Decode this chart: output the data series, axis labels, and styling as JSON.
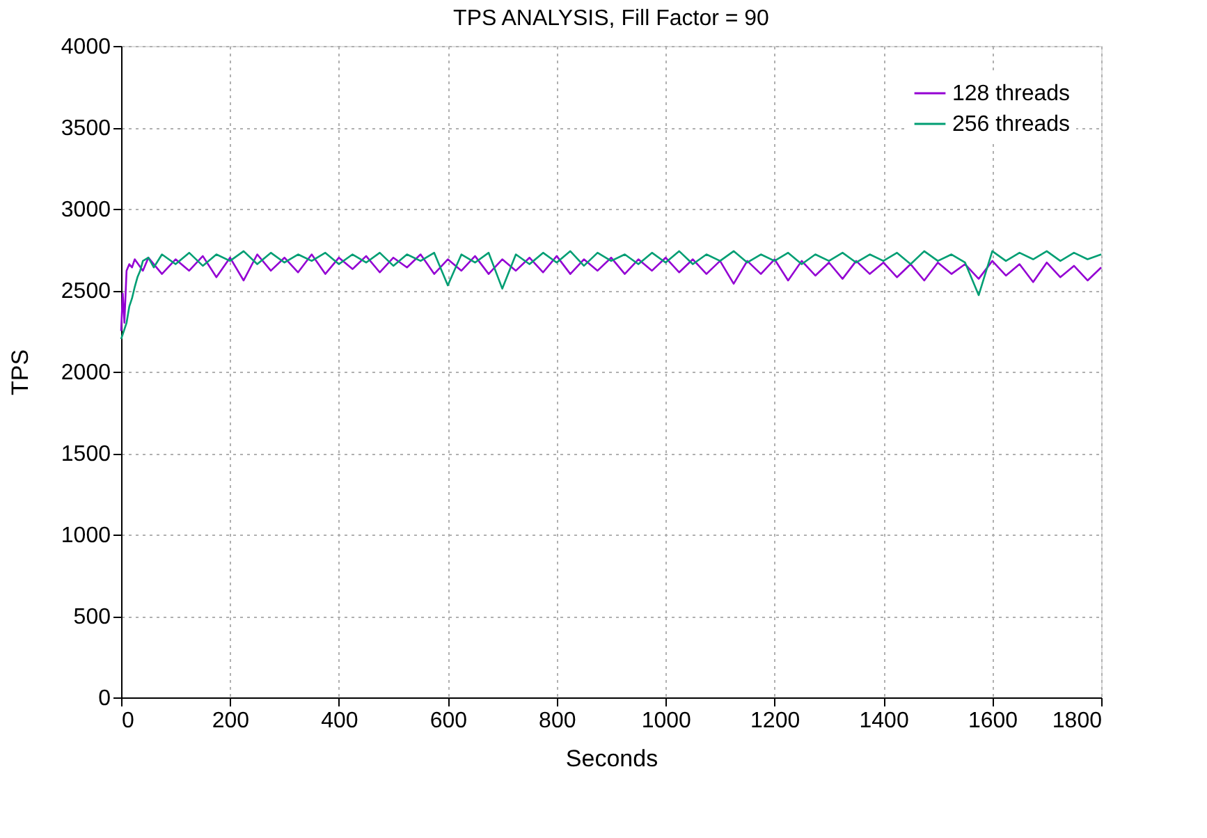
{
  "chart_data": {
    "type": "line",
    "title": "TPS ANALYSIS, Fill Factor = 90",
    "xlabel": "Seconds",
    "ylabel": "TPS",
    "xlim": [
      0,
      1800
    ],
    "xticks": [
      0,
      200,
      400,
      600,
      800,
      1000,
      1200,
      1400,
      1600,
      1800
    ],
    "ylim": [
      0,
      4000
    ],
    "yticks": [
      0,
      500,
      1000,
      1500,
      2000,
      2500,
      3000,
      3500,
      4000
    ],
    "grid": true,
    "legend": "top right",
    "marker": "none",
    "line_style": "solid",
    "series": [
      {
        "name": "128 threads",
        "color": "#9400d3",
        "x": [
          0,
          3,
          6,
          10,
          15,
          20,
          25,
          40,
          50,
          75,
          100,
          125,
          150,
          175,
          200,
          225,
          250,
          275,
          300,
          325,
          350,
          375,
          400,
          425,
          450,
          475,
          500,
          525,
          550,
          575,
          600,
          625,
          650,
          675,
          700,
          725,
          750,
          775,
          800,
          825,
          850,
          875,
          900,
          925,
          950,
          975,
          1000,
          1025,
          1050,
          1075,
          1100,
          1125,
          1150,
          1175,
          1200,
          1225,
          1250,
          1275,
          1300,
          1325,
          1350,
          1375,
          1400,
          1425,
          1450,
          1475,
          1500,
          1525,
          1550,
          1575,
          1600,
          1625,
          1650,
          1675,
          1700,
          1725,
          1750,
          1775,
          1800
        ],
        "values": [
          2250,
          2480,
          2300,
          2620,
          2660,
          2640,
          2690,
          2620,
          2700,
          2600,
          2690,
          2620,
          2710,
          2580,
          2700,
          2560,
          2720,
          2620,
          2700,
          2610,
          2720,
          2600,
          2700,
          2630,
          2710,
          2610,
          2700,
          2640,
          2720,
          2600,
          2690,
          2620,
          2710,
          2600,
          2690,
          2620,
          2700,
          2610,
          2710,
          2600,
          2690,
          2620,
          2700,
          2600,
          2690,
          2620,
          2700,
          2610,
          2690,
          2600,
          2680,
          2540,
          2680,
          2600,
          2690,
          2560,
          2680,
          2590,
          2670,
          2570,
          2680,
          2600,
          2670,
          2580,
          2660,
          2560,
          2670,
          2600,
          2660,
          2570,
          2680,
          2590,
          2660,
          2550,
          2670,
          2580,
          2650,
          2560,
          2640
        ]
      },
      {
        "name": "256 threads",
        "color": "#009e73",
        "x": [
          0,
          5,
          10,
          15,
          20,
          25,
          30,
          35,
          40,
          50,
          60,
          75,
          100,
          125,
          150,
          175,
          200,
          225,
          250,
          275,
          300,
          325,
          350,
          375,
          400,
          425,
          450,
          475,
          500,
          525,
          550,
          575,
          600,
          625,
          650,
          675,
          700,
          725,
          750,
          775,
          800,
          825,
          850,
          875,
          900,
          925,
          950,
          975,
          1000,
          1025,
          1050,
          1075,
          1100,
          1125,
          1150,
          1175,
          1200,
          1225,
          1250,
          1275,
          1300,
          1325,
          1350,
          1375,
          1400,
          1425,
          1450,
          1475,
          1500,
          1525,
          1550,
          1575,
          1600,
          1625,
          1650,
          1675,
          1700,
          1725,
          1750,
          1775,
          1800
        ],
        "values": [
          2200,
          2250,
          2300,
          2400,
          2450,
          2520,
          2580,
          2620,
          2680,
          2700,
          2640,
          2720,
          2660,
          2730,
          2650,
          2720,
          2680,
          2740,
          2660,
          2730,
          2670,
          2720,
          2680,
          2730,
          2660,
          2720,
          2670,
          2730,
          2650,
          2720,
          2680,
          2730,
          2530,
          2720,
          2670,
          2730,
          2510,
          2720,
          2660,
          2730,
          2670,
          2740,
          2650,
          2730,
          2680,
          2720,
          2660,
          2730,
          2670,
          2740,
          2660,
          2720,
          2680,
          2740,
          2670,
          2720,
          2680,
          2730,
          2660,
          2720,
          2680,
          2730,
          2670,
          2720,
          2680,
          2730,
          2660,
          2740,
          2680,
          2720,
          2670,
          2470,
          2740,
          2680,
          2730,
          2690,
          2740,
          2680,
          2730,
          2690,
          2720
        ]
      }
    ]
  }
}
